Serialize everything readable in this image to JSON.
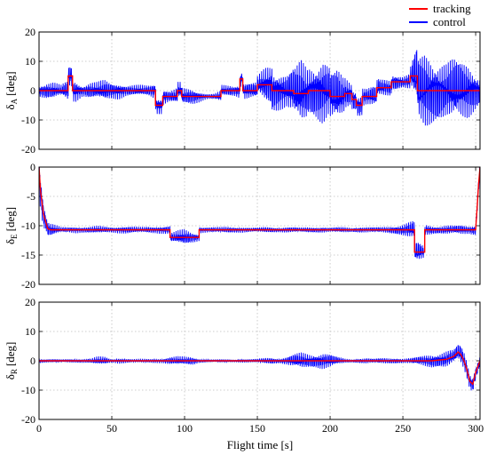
{
  "chart_data": [
    {
      "type": "line",
      "ylabel_main": "δ",
      "ylabel_sub": "A",
      "ylabel_unit": "[deg]",
      "xlim": [
        0,
        303
      ],
      "ylim": [
        -20,
        20
      ],
      "xticks": [
        0,
        50,
        100,
        150,
        200,
        250,
        300
      ],
      "yticks": [
        -20,
        -10,
        0,
        10,
        20
      ],
      "grid": true,
      "tracking": {
        "x": [
          0,
          20,
          20,
          23,
          23,
          80,
          80,
          85,
          85,
          95,
          95,
          98,
          98,
          125,
          125,
          138,
          138,
          140,
          140,
          150,
          150,
          160,
          160,
          175,
          175,
          185,
          185,
          200,
          200,
          210,
          210,
          215,
          215,
          218,
          218,
          222,
          222,
          232,
          232,
          242,
          242,
          255,
          255,
          260,
          260,
          303
        ],
        "y": [
          0,
          0,
          5,
          5,
          0,
          0,
          -5,
          -5,
          -2,
          -2,
          0,
          0,
          -2,
          -2,
          0,
          0,
          4,
          4,
          0,
          0,
          2,
          2,
          0,
          0,
          -1,
          -1,
          0,
          0,
          -2,
          -2,
          -1,
          -1,
          -3,
          -3,
          -5,
          -5,
          -2,
          -2,
          1,
          1,
          3,
          3,
          5,
          5,
          0,
          0
        ]
      },
      "control": {
        "x": [
          0,
          5,
          10,
          15,
          20,
          25,
          30,
          35,
          40,
          45,
          50,
          55,
          60,
          65,
          70,
          75,
          80,
          85,
          90,
          95,
          100,
          105,
          110,
          115,
          120,
          125,
          130,
          135,
          140,
          145,
          150,
          155,
          160,
          165,
          170,
          175,
          180,
          185,
          190,
          195,
          200,
          205,
          210,
          215,
          220,
          225,
          230,
          235,
          240,
          245,
          250,
          255,
          260,
          265,
          270,
          275,
          280,
          285,
          290,
          295,
          300,
          303
        ],
        "amp": [
          2,
          3,
          3,
          2,
          4,
          4,
          2,
          3,
          3,
          4,
          3,
          3,
          2,
          2,
          2,
          2,
          3,
          3,
          2,
          3,
          3,
          3,
          2,
          1,
          1,
          2,
          2,
          2,
          3,
          3,
          3,
          6,
          8,
          7,
          6,
          9,
          12,
          9,
          10,
          12,
          9,
          10,
          6,
          4,
          4,
          3,
          4,
          3,
          3,
          3,
          2,
          3,
          12,
          14,
          12,
          11,
          10,
          12,
          11,
          10,
          7,
          5
        ]
      }
    },
    {
      "type": "line",
      "ylabel_main": "δ",
      "ylabel_sub": "E",
      "ylabel_unit": "[deg]",
      "xlim": [
        0,
        303
      ],
      "ylim": [
        -20,
        0
      ],
      "xticks": [
        0,
        50,
        100,
        150,
        200,
        250,
        300
      ],
      "yticks": [
        -20,
        -15,
        -10,
        -5,
        0
      ],
      "grid": true,
      "tracking": {
        "x": [
          0,
          1,
          3,
          6,
          8,
          90,
          90,
          110,
          110,
          258,
          258,
          265,
          265,
          300,
          301,
          302,
          303
        ],
        "y": [
          0,
          -4,
          -8,
          -10.5,
          -10.7,
          -10.7,
          -12,
          -12,
          -10.7,
          -10.7,
          -14.5,
          -14.5,
          -10.7,
          -10.7,
          -7,
          -3,
          0
        ]
      },
      "control": {
        "x": [
          0,
          5,
          10,
          15,
          20,
          25,
          30,
          35,
          40,
          45,
          50,
          55,
          60,
          65,
          70,
          75,
          80,
          85,
          90,
          95,
          100,
          105,
          110,
          115,
          120,
          125,
          130,
          135,
          140,
          145,
          150,
          155,
          160,
          165,
          170,
          175,
          180,
          185,
          190,
          195,
          200,
          205,
          210,
          215,
          220,
          225,
          230,
          235,
          240,
          245,
          250,
          255,
          260,
          265,
          270,
          275,
          280,
          285,
          290,
          295,
          300,
          303
        ],
        "amp": [
          4,
          1.5,
          1,
          0.5,
          0.5,
          0.6,
          0.5,
          0.6,
          0.7,
          0.6,
          0.5,
          0.6,
          0.7,
          0.6,
          0.5,
          0.6,
          0.6,
          0.7,
          0.8,
          1.2,
          1.5,
          1,
          0.6,
          0.5,
          0.5,
          0.5,
          0.6,
          0.5,
          0.5,
          0.4,
          0.4,
          0.5,
          0.5,
          0.4,
          0.5,
          0.5,
          0.4,
          0.5,
          0.5,
          0.5,
          0.4,
          0.5,
          0.5,
          0.4,
          0.5,
          0.5,
          0.5,
          0.5,
          0.6,
          0.8,
          1,
          1.5,
          2,
          1,
          0.8,
          0.7,
          0.8,
          0.8,
          0.9,
          0.7,
          1,
          2
        ]
      }
    },
    {
      "type": "line",
      "ylabel_main": "δ",
      "ylabel_sub": "R",
      "ylabel_unit": "[deg]",
      "xlabel": "Flight time [s]",
      "xlim": [
        0,
        303
      ],
      "ylim": [
        -20,
        20
      ],
      "xticks": [
        0,
        50,
        100,
        150,
        200,
        250,
        300
      ],
      "yticks": [
        -20,
        -10,
        0,
        10,
        20
      ],
      "grid": true,
      "tracking": {
        "x": [
          0,
          260,
          270,
          280,
          285,
          288,
          290,
          292,
          294,
          296,
          298,
          300,
          303
        ],
        "y": [
          0,
          0,
          0,
          0.5,
          1.5,
          3,
          2,
          0,
          -3,
          -7,
          -8,
          -4,
          0
        ]
      },
      "control": {
        "x": [
          0,
          5,
          10,
          15,
          20,
          25,
          30,
          35,
          40,
          45,
          50,
          55,
          60,
          65,
          70,
          75,
          80,
          85,
          90,
          95,
          100,
          105,
          110,
          115,
          120,
          125,
          130,
          135,
          140,
          145,
          150,
          155,
          160,
          165,
          170,
          175,
          180,
          185,
          190,
          195,
          200,
          205,
          210,
          215,
          220,
          225,
          230,
          235,
          240,
          245,
          250,
          255,
          260,
          265,
          270,
          275,
          280,
          285,
          290,
          295,
          300,
          303
        ],
        "amp": [
          0.8,
          0.6,
          0.6,
          0.5,
          0.6,
          0.6,
          0.7,
          0.8,
          1.5,
          1.5,
          0.6,
          1,
          0.8,
          0.6,
          0.7,
          0.7,
          0.8,
          0.8,
          1.4,
          1.6,
          1.5,
          1.6,
          0.7,
          0.5,
          0.5,
          0.5,
          0.5,
          0.5,
          0.6,
          0.6,
          0.7,
          1,
          1.2,
          0.8,
          1.4,
          2.5,
          3,
          2.5,
          2.5,
          3,
          2.5,
          1.5,
          0.8,
          0.6,
          0.8,
          1,
          0.8,
          1,
          1,
          1,
          0.8,
          1,
          1.5,
          2,
          2.5,
          2.5,
          3,
          2.5,
          3.5,
          3,
          2.5,
          2
        ]
      }
    }
  ],
  "legend": {
    "position": "top-right",
    "entries": [
      {
        "label": "tracking",
        "color": "#ff0000"
      },
      {
        "label": "control",
        "color": "#0000ff"
      }
    ]
  },
  "colors": {
    "tracking": "#ff0000",
    "control": "#0000ff",
    "grid": "#bfbfbf",
    "axis": "#000000"
  }
}
